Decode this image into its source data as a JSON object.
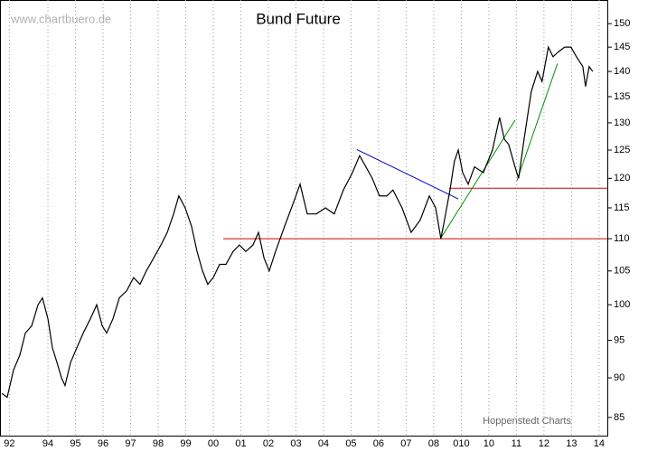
{
  "chart_data": {
    "type": "line",
    "title": "Bund Future",
    "watermark": "www.chartbuero.de",
    "source": "Hoppenstedt Charts",
    "color": "#000000",
    "log_scale": true,
    "grid": true,
    "xlim": [
      1992.26,
      2014.3
    ],
    "ylim": [
      82.8,
      155.2
    ],
    "yticks": [
      85,
      90,
      95,
      100,
      105,
      110,
      115,
      120,
      125,
      130,
      135,
      140,
      145,
      150
    ],
    "xticks": [
      {
        "value": 1992.6,
        "label": "92"
      },
      {
        "value": 1994,
        "label": "94"
      },
      {
        "value": 1995,
        "label": "95"
      },
      {
        "value": 1996,
        "label": "96"
      },
      {
        "value": 1997,
        "label": "97"
      },
      {
        "value": 1998,
        "label": "98"
      },
      {
        "value": 1999,
        "label": "99"
      },
      {
        "value": 2000,
        "label": "00"
      },
      {
        "value": 2001,
        "label": "01"
      },
      {
        "value": 2002,
        "label": "02"
      },
      {
        "value": 2003,
        "label": "03"
      },
      {
        "value": 2004,
        "label": "04"
      },
      {
        "value": 2005,
        "label": "05"
      },
      {
        "value": 2006,
        "label": "06"
      },
      {
        "value": 2007,
        "label": "07"
      },
      {
        "value": 2008,
        "label": "08"
      },
      {
        "value": 2009,
        "label": "010"
      },
      {
        "value": 2010,
        "label": "10"
      },
      {
        "value": 2011,
        "label": "11"
      },
      {
        "value": 2012,
        "label": "12"
      },
      {
        "value": 2013,
        "label": "13"
      },
      {
        "value": 2014,
        "label": "14"
      }
    ],
    "x": [
      1992.33,
      1992.52,
      1992.75,
      1992.98,
      1993.18,
      1993.41,
      1993.64,
      1993.8,
      1994.0,
      1994.16,
      1994.33,
      1994.49,
      1994.62,
      1994.82,
      1995.05,
      1995.28,
      1995.54,
      1995.77,
      1995.97,
      1996.13,
      1996.36,
      1996.59,
      1996.85,
      1997.11,
      1997.34,
      1997.57,
      1997.84,
      1998.1,
      1998.33,
      1998.56,
      1998.75,
      1998.98,
      1999.21,
      1999.41,
      1999.61,
      1999.8,
      2000.0,
      2000.23,
      2000.46,
      2000.72,
      2000.95,
      2001.18,
      2001.44,
      2001.64,
      2001.84,
      2002.03,
      2002.26,
      2002.59,
      2002.92,
      2003.15,
      2003.41,
      2003.74,
      2004.07,
      2004.39,
      2004.72,
      2005.05,
      2005.31,
      2005.54,
      2005.77,
      2006.03,
      2006.3,
      2006.52,
      2006.85,
      2007.18,
      2007.51,
      2007.84,
      2008.07,
      2008.26,
      2008.39,
      2008.59,
      2008.75,
      2008.89,
      2009.05,
      2009.25,
      2009.48,
      2009.8,
      2010.13,
      2010.39,
      2010.56,
      2010.72,
      2010.95,
      2011.08,
      2011.28,
      2011.54,
      2011.77,
      2011.93,
      2012.16,
      2012.33,
      2012.52,
      2012.75,
      2012.98,
      2013.18,
      2013.41,
      2013.51,
      2013.64,
      2013.77
    ],
    "values": [
      88,
      87.5,
      91,
      93,
      96,
      97,
      100,
      101,
      98,
      94,
      92,
      90,
      89,
      92,
      94,
      96,
      98,
      100,
      97,
      96,
      98,
      101,
      102,
      104,
      103,
      105,
      107,
      109,
      111,
      114,
      117,
      115,
      112,
      108,
      105,
      103,
      104,
      106,
      106,
      108,
      109,
      108,
      109,
      111,
      107,
      105,
      108,
      112,
      116,
      119,
      114,
      114,
      115,
      114,
      118,
      121,
      124,
      122,
      120,
      117,
      117,
      118,
      115,
      111,
      113,
      117,
      115,
      110,
      113,
      118,
      123,
      125,
      121,
      119,
      122,
      121,
      125,
      131,
      127,
      126,
      122,
      120,
      127,
      136,
      140,
      138,
      145,
      143,
      144,
      145,
      145,
      143,
      141,
      137,
      141,
      140
    ],
    "lines": [
      {
        "x": [
          2000.36,
          2014.3
        ],
        "y": [
          110,
          110
        ],
        "color": "#d00000"
      },
      {
        "x": [
          2008.56,
          2014.3
        ],
        "y": [
          118.3,
          118.3
        ],
        "color": "#d00000"
      },
      {
        "x": [
          2005.21,
          2008.89
        ],
        "y": [
          125.1,
          116.5
        ],
        "color": "#0000c0"
      },
      {
        "x": [
          2008.23,
          2010.95
        ],
        "y": [
          109.9,
          130.5
        ],
        "color": "#009000"
      },
      {
        "x": [
          2011.02,
          2012.49
        ],
        "y": [
          119.6,
          141.6
        ],
        "color": "#009000"
      }
    ]
  }
}
